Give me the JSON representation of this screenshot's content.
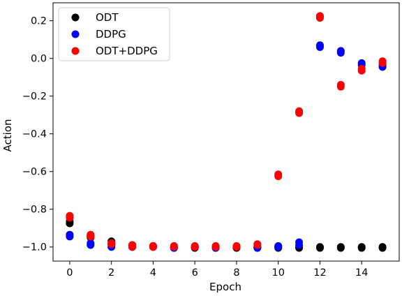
{
  "chart_data": {
    "type": "scatter",
    "title": "",
    "xlabel": "Epoch",
    "ylabel": "Action",
    "xlim": [
      -0.8,
      15.8
    ],
    "ylim": [
      -1.075,
      0.295
    ],
    "xticks": [
      0,
      2,
      4,
      6,
      8,
      10,
      12,
      14
    ],
    "yticks": [
      -1.0,
      -0.8,
      -0.6,
      -0.4,
      -0.2,
      0.0,
      0.2
    ],
    "ytick_labels": [
      "−1.0",
      "−0.8",
      "−0.6",
      "−0.4",
      "−0.2",
      "0.0",
      "0.2"
    ],
    "grid": false,
    "legend_position": "top-left",
    "series": [
      {
        "name": "ODT",
        "color": "#000000",
        "points": [
          [
            0,
            -0.865
          ],
          [
            0,
            -0.875
          ],
          [
            1,
            -0.94
          ],
          [
            1,
            -0.95
          ],
          [
            2,
            -0.97
          ],
          [
            2,
            -0.985
          ],
          [
            3,
            -0.99
          ],
          [
            3,
            -1.0
          ],
          [
            4,
            -0.995
          ],
          [
            4,
            -1.0
          ],
          [
            5,
            -1.0
          ],
          [
            5,
            -1.005
          ],
          [
            6,
            -1.0
          ],
          [
            6,
            -1.005
          ],
          [
            7,
            -1.0
          ],
          [
            7,
            -1.005
          ],
          [
            8,
            -1.0
          ],
          [
            8,
            -1.005
          ],
          [
            9,
            -1.0
          ],
          [
            9,
            -1.005
          ],
          [
            10,
            -1.0
          ],
          [
            10,
            -1.005
          ],
          [
            11,
            -1.0
          ],
          [
            11,
            -1.005
          ],
          [
            12,
            -1.0
          ],
          [
            12,
            -1.005
          ],
          [
            13,
            -1.0
          ],
          [
            13,
            -1.005
          ],
          [
            14,
            -1.0
          ],
          [
            14,
            -1.005
          ],
          [
            15,
            -1.0
          ],
          [
            15,
            -1.005
          ]
        ]
      },
      {
        "name": "DDPG",
        "color": "#0000ff",
        "points": [
          [
            0,
            -0.935
          ],
          [
            0,
            -0.945
          ],
          [
            1,
            -0.98
          ],
          [
            1,
            -0.99
          ],
          [
            2,
            -0.99
          ],
          [
            2,
            -1.0
          ],
          [
            3,
            -1.0
          ],
          [
            4,
            -1.0
          ],
          [
            5,
            -1.005
          ],
          [
            6,
            -1.0
          ],
          [
            7,
            -1.005
          ],
          [
            8,
            -1.0
          ],
          [
            9,
            -1.0
          ],
          [
            9,
            -1.005
          ],
          [
            10,
            -0.995
          ],
          [
            10,
            -1.0
          ],
          [
            11,
            -0.975
          ],
          [
            11,
            -0.99
          ],
          [
            12,
            0.06
          ],
          [
            12,
            0.07
          ],
          [
            13,
            0.03
          ],
          [
            13,
            0.04
          ],
          [
            14,
            -0.025
          ],
          [
            14,
            -0.035
          ],
          [
            15,
            -0.035
          ],
          [
            15,
            -0.045
          ]
        ]
      },
      {
        "name": "ODT+DDPG",
        "color": "#ff0000",
        "points": [
          [
            0,
            -0.835
          ],
          [
            0,
            -0.845
          ],
          [
            1,
            -0.935
          ],
          [
            1,
            -0.945
          ],
          [
            2,
            -0.98
          ],
          [
            2,
            -0.985
          ],
          [
            3,
            -0.99
          ],
          [
            3,
            -1.0
          ],
          [
            4,
            -0.995
          ],
          [
            4,
            -1.0
          ],
          [
            5,
            -0.995
          ],
          [
            5,
            -1.0
          ],
          [
            6,
            -0.995
          ],
          [
            6,
            -1.0
          ],
          [
            7,
            -0.995
          ],
          [
            7,
            -1.0
          ],
          [
            8,
            -0.995
          ],
          [
            8,
            -1.0
          ],
          [
            9,
            -0.985
          ],
          [
            9,
            -0.99
          ],
          [
            10,
            -0.615
          ],
          [
            10,
            -0.625
          ],
          [
            11,
            -0.28
          ],
          [
            11,
            -0.29
          ],
          [
            12,
            0.215
          ],
          [
            12,
            0.225
          ],
          [
            13,
            -0.14
          ],
          [
            13,
            -0.15
          ],
          [
            14,
            -0.055
          ],
          [
            14,
            -0.065
          ],
          [
            15,
            -0.015
          ],
          [
            15,
            -0.025
          ]
        ]
      }
    ]
  }
}
